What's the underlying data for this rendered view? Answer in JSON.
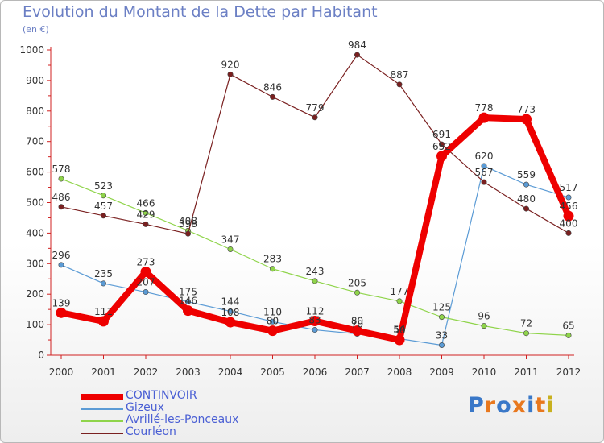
{
  "chart": {
    "title": "Evolution du Montant de la Dette par Habitant",
    "subtitle": "(en €)"
  },
  "logo": {
    "text": "Proxiti",
    "colors": [
      "#3a78c8",
      "#e8781e",
      "#3a78c8",
      "#e8781e",
      "#3a78c8",
      "#e8781e",
      "#c8b01e"
    ]
  },
  "chart_data": {
    "type": "line",
    "title": "Evolution du Montant de la Dette par Habitant",
    "subtitle": "(en €)",
    "xlabel": "",
    "ylabel": "",
    "x": [
      "2000",
      "2001",
      "2002",
      "2003",
      "2004",
      "2005",
      "2006",
      "2007",
      "2008",
      "2009",
      "2010",
      "2011",
      "2012"
    ],
    "ylim": [
      0,
      1000
    ],
    "yticks": [
      "0",
      "100",
      "200",
      "300",
      "400",
      "500",
      "600",
      "700",
      "800",
      "900",
      "1000"
    ],
    "grid": false,
    "legend_position": "bottom-left",
    "series": [
      {
        "name": "CONTINVOIR",
        "color": "#ee0000",
        "bold": true,
        "values": [
          139,
          111,
          273,
          146,
          108,
          80,
          112,
          80,
          50,
          652,
          778,
          773,
          456
        ]
      },
      {
        "name": "Gizeux",
        "color": "#5b9bd5",
        "bold": false,
        "values": [
          296,
          235,
          207,
          175,
          144,
          110,
          83,
          70,
          54,
          33,
          620,
          559,
          517
        ]
      },
      {
        "name": "Avrillé-les-Ponceaux",
        "color": "#8fd44a",
        "bold": false,
        "values": [
          578,
          523,
          466,
          408,
          347,
          283,
          243,
          205,
          177,
          125,
          96,
          72,
          65
        ]
      },
      {
        "name": "Courléon",
        "color": "#7a2020",
        "bold": false,
        "values": [
          486,
          457,
          429,
          398,
          920,
          846,
          779,
          984,
          887,
          691,
          567,
          480,
          400
        ]
      }
    ]
  }
}
